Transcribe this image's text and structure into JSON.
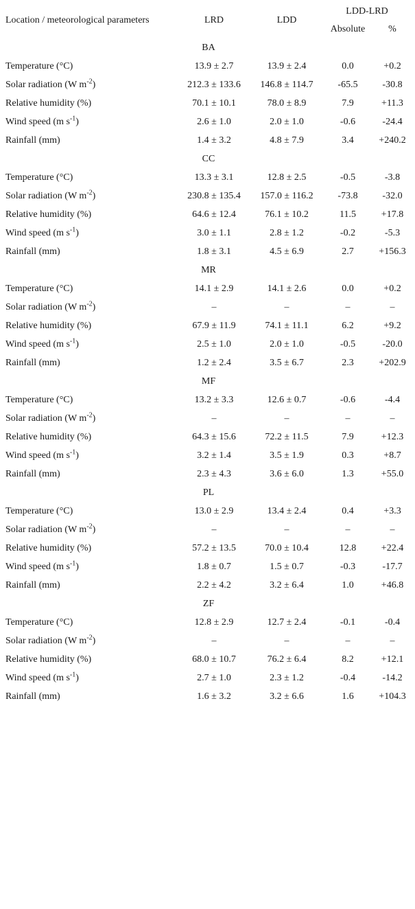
{
  "header": {
    "param_col": "Location / meteorological parameters",
    "lrd": "LRD",
    "ldd": "LDD",
    "diff_group": "LDD-LRD",
    "absolute": "Absolute",
    "percent": "%"
  },
  "sections": [
    {
      "code": "BA",
      "rows": [
        {
          "param": {
            "main": "Temperature (°C)",
            "sup": "",
            "end": ""
          },
          "lrd": "13.9 ± 2.7",
          "ldd": "13.9 ± 2.4",
          "abs": "0.0",
          "pct": "+0.2"
        },
        {
          "param": {
            "main": "Solar radiation (W m",
            "sup": "-2",
            "end": ")"
          },
          "lrd": "212.3 ± 133.6",
          "ldd": "146.8 ± 114.7",
          "abs": "-65.5",
          "pct": "-30.8"
        },
        {
          "param": {
            "main": "Relative humidity (%)",
            "sup": "",
            "end": ""
          },
          "lrd": "70.1 ± 10.1",
          "ldd": "78.0 ± 8.9",
          "abs": "7.9",
          "pct": "+11.3"
        },
        {
          "param": {
            "main": "Wind speed (m s",
            "sup": "-1",
            "end": ")"
          },
          "lrd": "2.6 ± 1.0",
          "ldd": "2.0 ± 1.0",
          "abs": "-0.6",
          "pct": "-24.4"
        },
        {
          "param": {
            "main": "Rainfall (mm)",
            "sup": "",
            "end": ""
          },
          "lrd": "1.4 ± 3.2",
          "ldd": "4.8 ± 7.9",
          "abs": "3.4",
          "pct": "+240.2"
        }
      ]
    },
    {
      "code": "CC",
      "rows": [
        {
          "param": {
            "main": "Temperature (°C)",
            "sup": "",
            "end": ""
          },
          "lrd": "13.3 ± 3.1",
          "ldd": "12.8 ± 2.5",
          "abs": "-0.5",
          "pct": "-3.8"
        },
        {
          "param": {
            "main": "Solar radiation (W m",
            "sup": "-2",
            "end": ")"
          },
          "lrd": "230.8 ± 135.4",
          "ldd": "157.0 ± 116.2",
          "abs": "-73.8",
          "pct": "-32.0"
        },
        {
          "param": {
            "main": "Relative humidity (%)",
            "sup": "",
            "end": ""
          },
          "lrd": "64.6 ± 12.4",
          "ldd": "76.1 ± 10.2",
          "abs": "11.5",
          "pct": "+17.8"
        },
        {
          "param": {
            "main": "Wind speed (m s",
            "sup": "-1",
            "end": ")"
          },
          "lrd": "3.0 ± 1.1",
          "ldd": "2.8 ± 1.2",
          "abs": "-0.2",
          "pct": "-5.3"
        },
        {
          "param": {
            "main": "Rainfall (mm)",
            "sup": "",
            "end": ""
          },
          "lrd": "1.8 ± 3.1",
          "ldd": "4.5 ± 6.9",
          "abs": "2.7",
          "pct": "+156.3"
        }
      ]
    },
    {
      "code": "MR",
      "rows": [
        {
          "param": {
            "main": "Temperature (°C)",
            "sup": "",
            "end": ""
          },
          "lrd": "14.1 ± 2.9",
          "ldd": "14.1 ± 2.6",
          "abs": "0.0",
          "pct": "+0.2"
        },
        {
          "param": {
            "main": "Solar radiation (W m",
            "sup": "-2",
            "end": ")"
          },
          "lrd": "–",
          "ldd": "–",
          "abs": "–",
          "pct": "–"
        },
        {
          "param": {
            "main": "Relative humidity (%)",
            "sup": "",
            "end": ""
          },
          "lrd": "67.9 ± 11.9",
          "ldd": "74.1 ± 11.1",
          "abs": "6.2",
          "pct": "+9.2"
        },
        {
          "param": {
            "main": "Wind speed (m s",
            "sup": "-1",
            "end": ")"
          },
          "lrd": "2.5 ± 1.0",
          "ldd": "2.0 ± 1.0",
          "abs": "-0.5",
          "pct": "-20.0"
        },
        {
          "param": {
            "main": "Rainfall (mm)",
            "sup": "",
            "end": ""
          },
          "lrd": "1.2 ± 2.4",
          "ldd": "3.5 ± 6.7",
          "abs": "2.3",
          "pct": "+202.9"
        }
      ]
    },
    {
      "code": "MF",
      "rows": [
        {
          "param": {
            "main": "Temperature (°C)",
            "sup": "",
            "end": ""
          },
          "lrd": "13.2 ± 3.3",
          "ldd": "12.6 ± 0.7",
          "abs": "-0.6",
          "pct": "-4.4"
        },
        {
          "param": {
            "main": "Solar radiation (W m",
            "sup": "-2",
            "end": ")"
          },
          "lrd": "–",
          "ldd": "–",
          "abs": "–",
          "pct": "–"
        },
        {
          "param": {
            "main": "Relative humidity (%)",
            "sup": "",
            "end": ""
          },
          "lrd": "64.3 ± 15.6",
          "ldd": "72.2 ± 11.5",
          "abs": "7.9",
          "pct": "+12.3"
        },
        {
          "param": {
            "main": "Wind speed (m s",
            "sup": "-1",
            "end": ")"
          },
          "lrd": "3.2 ± 1.4",
          "ldd": "3.5 ± 1.9",
          "abs": "0.3",
          "pct": "+8.7"
        },
        {
          "param": {
            "main": "Rainfall (mm)",
            "sup": "",
            "end": ""
          },
          "lrd": "2.3 ± 4.3",
          "ldd": "3.6 ± 6.0",
          "abs": "1.3",
          "pct": "+55.0"
        }
      ]
    },
    {
      "code": "PL",
      "rows": [
        {
          "param": {
            "main": "Temperature (°C)",
            "sup": "",
            "end": ""
          },
          "lrd": "13.0 ± 2.9",
          "ldd": "13.4 ± 2.4",
          "abs": "0.4",
          "pct": "+3.3"
        },
        {
          "param": {
            "main": "Solar radiation (W m",
            "sup": "-2",
            "end": ")"
          },
          "lrd": "–",
          "ldd": "–",
          "abs": "–",
          "pct": "–"
        },
        {
          "param": {
            "main": "Relative humidity (%)",
            "sup": "",
            "end": ""
          },
          "lrd": "57.2 ± 13.5",
          "ldd": "70.0 ± 10.4",
          "abs": "12.8",
          "pct": "+22.4"
        },
        {
          "param": {
            "main": "Wind speed (m s",
            "sup": "-1",
            "end": ")"
          },
          "lrd": "1.8 ± 0.7",
          "ldd": "1.5 ± 0.7",
          "abs": "-0.3",
          "pct": "-17.7"
        },
        {
          "param": {
            "main": "Rainfall (mm)",
            "sup": "",
            "end": ""
          },
          "lrd": "2.2 ± 4.2",
          "ldd": "3.2 ± 6.4",
          "abs": "1.0",
          "pct": "+46.8"
        }
      ]
    },
    {
      "code": "ZF",
      "rows": [
        {
          "param": {
            "main": "Temperature (°C)",
            "sup": "",
            "end": ""
          },
          "lrd": "12.8 ± 2.9",
          "ldd": "12.7 ± 2.4",
          "abs": "-0.1",
          "pct": "-0.4"
        },
        {
          "param": {
            "main": "Solar radiation (W m",
            "sup": "-2",
            "end": ")"
          },
          "lrd": "–",
          "ldd": "–",
          "abs": "–",
          "pct": "–"
        },
        {
          "param": {
            "main": "Relative humidity (%)",
            "sup": "",
            "end": ""
          },
          "lrd": "68.0 ± 10.7",
          "ldd": "76.2 ± 6.4",
          "abs": "8.2",
          "pct": "+12.1"
        },
        {
          "param": {
            "main": "Wind speed (m s",
            "sup": "-1",
            "end": ")"
          },
          "lrd": "2.7 ± 1.0",
          "ldd": "2.3 ± 1.2",
          "abs": "-0.4",
          "pct": "-14.2"
        },
        {
          "param": {
            "main": "Rainfall (mm)",
            "sup": "",
            "end": ""
          },
          "lrd": "1.6 ± 3.2",
          "ldd": "3.2 ± 6.6",
          "abs": "1.6",
          "pct": "+104.3"
        }
      ]
    }
  ]
}
